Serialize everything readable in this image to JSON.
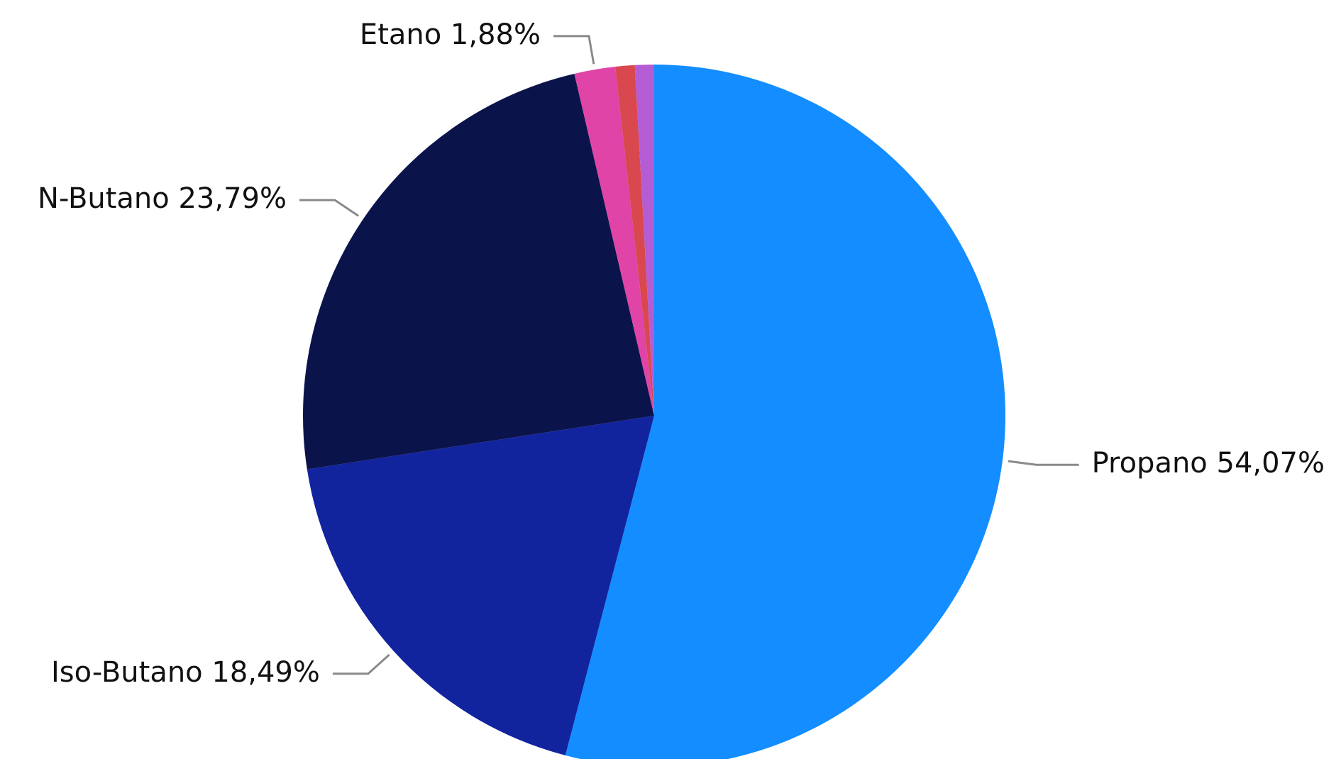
{
  "chart_data": {
    "type": "pie",
    "title": "",
    "start_angle_deg": 0,
    "direction": "clockwise",
    "slices": [
      {
        "name": "Propano",
        "value": 54.07,
        "label": "Propano 54,07%",
        "color": "#138DFF",
        "show_label": true
      },
      {
        "name": "Iso-Butano",
        "value": 18.49,
        "label": "Iso-Butano 18,49%",
        "color": "#12239E",
        "show_label": true
      },
      {
        "name": "N-Butano",
        "value": 23.79,
        "label": "N-Butano 23,79%",
        "color": "#0B134B",
        "show_label": true
      },
      {
        "name": "Etano",
        "value": 1.88,
        "label": "Etano 1,88%",
        "color": "#E044A7",
        "show_label": true
      },
      {
        "name": "",
        "value": 0.89,
        "label": "",
        "color": "#D9474F",
        "show_label": false
      },
      {
        "name": "",
        "value": 0.88,
        "label": "",
        "color": "#B45CD4",
        "show_label": false
      }
    ]
  }
}
